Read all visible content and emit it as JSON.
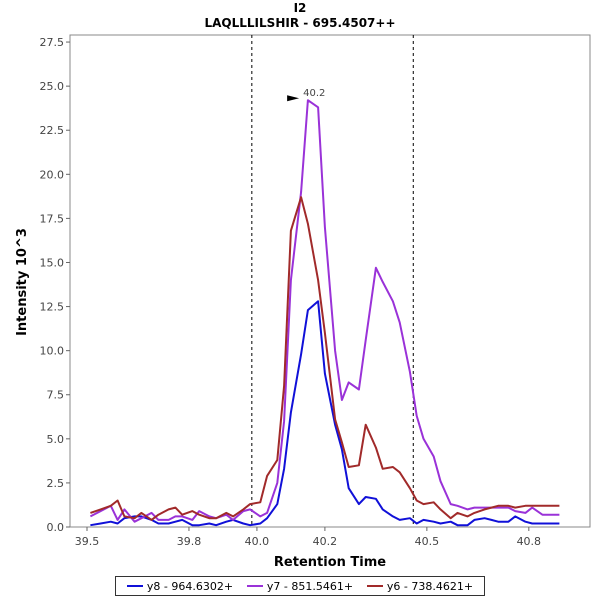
{
  "chart_data": {
    "type": "line",
    "title": "I2",
    "subtitle": "LAQLLLILSHIR - 695.4507++",
    "xlabel": "Retention Time",
    "ylabel": "Intensity 10^3",
    "xlim": [
      39.45,
      40.98
    ],
    "ylim": [
      0,
      27.9
    ],
    "x_ticks": [
      39.5,
      39.8,
      40.0,
      40.2,
      40.5,
      40.8
    ],
    "x_tick_labels": [
      "39.5",
      "39.8",
      "40.0",
      "40.2",
      "40.5",
      "40.8"
    ],
    "y_ticks": [
      0,
      2.5,
      5,
      7.5,
      10,
      12.5,
      15,
      17.5,
      20,
      22.5,
      25,
      27.5
    ],
    "y_tick_labels": [
      "0.0",
      "2.5",
      "5.0",
      "7.5",
      "10.0",
      "12.5",
      "15.0",
      "17.5",
      "20.0",
      "22.5",
      "25.0",
      "27.5"
    ],
    "vlines": [
      39.985,
      40.46
    ],
    "annotation": {
      "text": "40.2",
      "x": 40.13,
      "y": 24.2,
      "color": "#8a2be2"
    },
    "x": [
      39.51,
      39.54,
      39.57,
      39.59,
      39.61,
      39.64,
      39.66,
      39.69,
      39.71,
      39.74,
      39.76,
      39.78,
      39.81,
      39.83,
      39.86,
      39.88,
      39.91,
      39.93,
      39.96,
      39.98,
      40.01,
      40.03,
      40.06,
      40.08,
      40.1,
      40.13,
      40.15,
      40.18,
      40.2,
      40.23,
      40.25,
      40.27,
      40.3,
      40.32,
      40.35,
      40.37,
      40.4,
      40.42,
      40.45,
      40.47,
      40.49,
      40.52,
      40.54,
      40.57,
      40.59,
      40.62,
      40.64,
      40.67,
      40.69,
      40.71,
      40.74,
      40.76,
      40.79,
      40.81,
      40.84,
      40.86,
      40.89
    ],
    "series": [
      {
        "name": "y8 - 964.6302+",
        "color": "#1010d8",
        "values": [
          0.1,
          0.2,
          0.3,
          0.2,
          0.5,
          0.6,
          0.6,
          0.4,
          0.2,
          0.2,
          0.3,
          0.4,
          0.1,
          0.1,
          0.2,
          0.1,
          0.3,
          0.4,
          0.2,
          0.1,
          0.2,
          0.5,
          1.3,
          3.3,
          6.5,
          9.8,
          12.3,
          12.8,
          8.7,
          5.8,
          4.4,
          2.2,
          1.3,
          1.7,
          1.6,
          1.0,
          0.6,
          0.4,
          0.5,
          0.2,
          0.4,
          0.3,
          0.2,
          0.3,
          0.1,
          0.1,
          0.4,
          0.5,
          0.4,
          0.3,
          0.3,
          0.6,
          0.3,
          0.2,
          0.2,
          0.2,
          0.2
        ]
      },
      {
        "name": "y7 - 851.5461+",
        "color": "#9a32d8",
        "values": [
          0.6,
          0.9,
          1.2,
          0.4,
          1.0,
          0.3,
          0.5,
          0.8,
          0.4,
          0.4,
          0.6,
          0.6,
          0.4,
          0.9,
          0.6,
          0.5,
          0.7,
          0.4,
          0.9,
          1.0,
          0.6,
          0.8,
          2.5,
          6.0,
          14.0,
          19.0,
          24.2,
          23.8,
          17.0,
          10.0,
          7.2,
          8.2,
          7.8,
          10.6,
          14.7,
          13.9,
          12.8,
          11.6,
          8.8,
          6.3,
          5.0,
          4.0,
          2.6,
          1.3,
          1.2,
          1.0,
          1.1,
          1.1,
          1.1,
          1.1,
          1.1,
          0.9,
          0.8,
          1.1,
          0.7,
          0.7,
          0.7
        ]
      },
      {
        "name": "y6 - 738.4621+",
        "color": "#a12a2a",
        "values": [
          0.8,
          1.0,
          1.2,
          1.5,
          0.6,
          0.5,
          0.8,
          0.4,
          0.7,
          1.0,
          1.1,
          0.7,
          0.9,
          0.7,
          0.5,
          0.5,
          0.8,
          0.6,
          1.0,
          1.3,
          1.4,
          2.9,
          3.8,
          8.0,
          16.8,
          18.7,
          17.2,
          14.0,
          11.0,
          6.1,
          4.8,
          3.4,
          3.5,
          5.8,
          4.5,
          3.3,
          3.4,
          3.1,
          2.2,
          1.5,
          1.3,
          1.4,
          1.0,
          0.5,
          0.8,
          0.6,
          0.8,
          1.0,
          1.1,
          1.2,
          1.2,
          1.1,
          1.2,
          1.2,
          1.2,
          1.2,
          1.2
        ]
      }
    ],
    "legend_placement": "bottom"
  }
}
